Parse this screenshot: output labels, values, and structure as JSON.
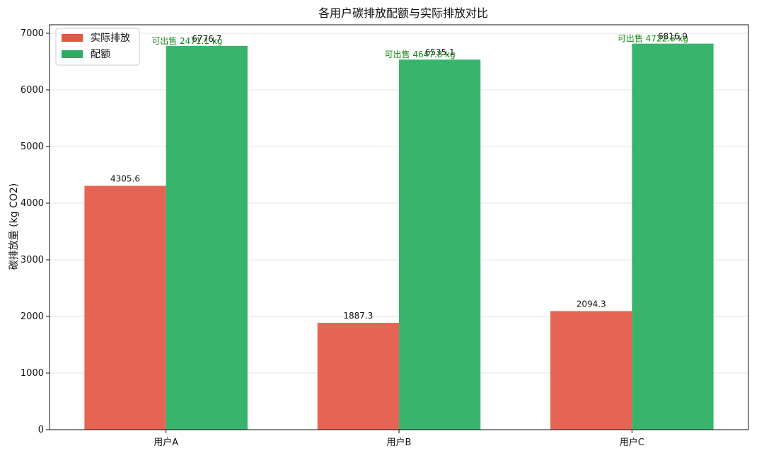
{
  "chart_data": {
    "type": "bar",
    "title": "各用户碳排放配额与实际排放对比",
    "xlabel": "",
    "ylabel": "碳排放量 (kg CO2)",
    "categories": [
      "用户A",
      "用户B",
      "用户C"
    ],
    "series": [
      {
        "name": "实际排放",
        "values": [
          4305.6,
          1887.3,
          2094.3
        ],
        "color": "#e45745"
      },
      {
        "name": "配额",
        "values": [
          6776.7,
          6535.1,
          6816.9
        ],
        "color": "#27ae60"
      }
    ],
    "value_labels": {
      "actual": [
        "4305.6",
        "1887.3",
        "2094.3"
      ],
      "quota": [
        "6776.7",
        "6535.1",
        "6816.9"
      ]
    },
    "annotations": [
      "可出售 2471.1 kg",
      "可出售 4647.8 kg",
      "可出售 4722.6 kg"
    ],
    "annotation_color": "#1a8a1a",
    "ylim": [
      0,
      7150
    ],
    "yticks": [
      0,
      1000,
      2000,
      3000,
      4000,
      5000,
      6000,
      7000
    ],
    "grid": "y",
    "legend": "top-left"
  }
}
